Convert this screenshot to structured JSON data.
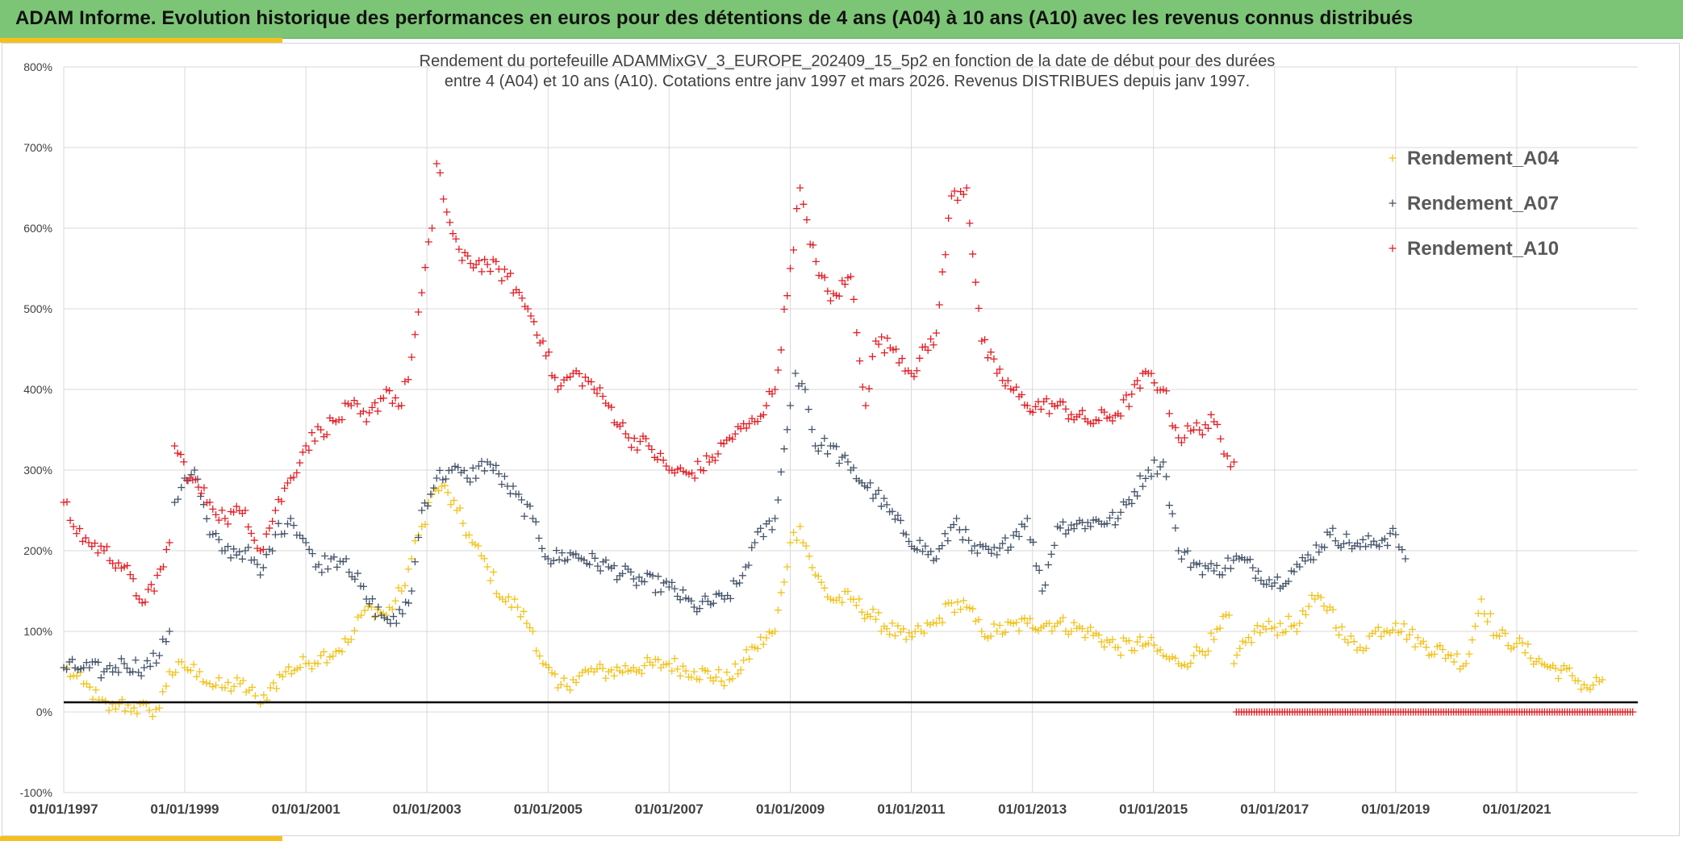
{
  "header": {
    "title": "ADAM Informe. Evolution historique des performances en euros pour des détentions de 4 ans (A04) à 10 ans (A10) avec les revenus connus distribués"
  },
  "colors": {
    "header_bg": "#7cc576",
    "accent": "#f4c01e",
    "A04": "#f2c21b",
    "A07": "#44546a",
    "A10": "#e31e24",
    "reference_line": "#000000",
    "grid": "#d9d9d9"
  },
  "chart_data": {
    "type": "scatter",
    "marker": "plus",
    "title_lines": [
      "Rendement du portefeuille ADAMMixGV_3_EUROPE_202409_15_5p2  en fonction de la date de début pour des durées",
      "entre 4 (A04) et 10 ans (A10). Cotations entre janv 1997 et mars 2026. Revenus DISTRIBUES depuis janv 1997."
    ],
    "legend_position": "top-right",
    "grid": true,
    "ylim": [
      -100,
      800
    ],
    "y_ticks": [
      -100,
      0,
      100,
      200,
      300,
      400,
      500,
      600,
      700,
      800
    ],
    "y_tick_labels": [
      "-100%",
      "0%",
      "100%",
      "200%",
      "300%",
      "400%",
      "500%",
      "600%",
      "700%",
      "800%"
    ],
    "xlim": [
      "1997-01-01",
      "2023-01-01"
    ],
    "x_ticks": [
      "1997-01-01",
      "1999-01-01",
      "2001-01-01",
      "2003-01-01",
      "2005-01-01",
      "2007-01-01",
      "2009-01-01",
      "2011-01-01",
      "2013-01-01",
      "2015-01-01",
      "2017-01-01",
      "2019-01-01",
      "2021-01-01"
    ],
    "x_tick_labels": [
      "01/01/1997",
      "01/01/1999",
      "01/01/2001",
      "01/01/2003",
      "01/01/2005",
      "01/01/2007",
      "01/01/2009",
      "01/01/2011",
      "01/01/2013",
      "01/01/2015",
      "01/01/2017",
      "01/01/2019",
      "01/01/2021"
    ],
    "reference_line_y": 12,
    "series": [
      {
        "name": "Rendement_A04",
        "color": "#f2c21b",
        "points": [
          [
            "1997-01-01",
            55
          ],
          [
            "1997-03-01",
            45
          ],
          [
            "1997-05-01",
            35
          ],
          [
            "1997-08-01",
            15
          ],
          [
            "1997-10-01",
            2
          ],
          [
            "1997-12-01",
            10
          ],
          [
            "1998-03-01",
            5
          ],
          [
            "1998-06-01",
            2
          ],
          [
            "1998-08-01",
            5
          ],
          [
            "1998-10-01",
            50
          ],
          [
            "1999-01-01",
            55
          ],
          [
            "1999-04-01",
            50
          ],
          [
            "1999-06-01",
            35
          ],
          [
            "1999-09-01",
            30
          ],
          [
            "1999-12-01",
            35
          ],
          [
            "2000-03-01",
            20
          ],
          [
            "2000-04-01",
            10
          ],
          [
            "2000-06-01",
            30
          ],
          [
            "2000-09-01",
            50
          ],
          [
            "2001-01-01",
            60
          ],
          [
            "2001-04-01",
            70
          ],
          [
            "2001-07-01",
            75
          ],
          [
            "2001-10-01",
            90
          ],
          [
            "2001-12-01",
            120
          ],
          [
            "2002-02-01",
            130
          ],
          [
            "2002-05-01",
            120
          ],
          [
            "2002-08-01",
            150
          ],
          [
            "2002-10-01",
            190
          ],
          [
            "2002-12-01",
            230
          ],
          [
            "2003-02-01",
            270
          ],
          [
            "2003-04-01",
            280
          ],
          [
            "2003-07-01",
            250
          ],
          [
            "2003-10-01",
            210
          ],
          [
            "2004-01-01",
            180
          ],
          [
            "2004-04-01",
            140
          ],
          [
            "2004-07-01",
            130
          ],
          [
            "2004-10-01",
            100
          ],
          [
            "2004-12-01",
            60
          ],
          [
            "2005-03-01",
            30
          ],
          [
            "2005-06-01",
            40
          ],
          [
            "2005-09-01",
            50
          ],
          [
            "2006-01-01",
            50
          ],
          [
            "2006-06-01",
            55
          ],
          [
            "2007-01-01",
            60
          ],
          [
            "2007-06-01",
            50
          ],
          [
            "2008-01-01",
            40
          ],
          [
            "2008-06-01",
            80
          ],
          [
            "2008-10-01",
            100
          ],
          [
            "2009-01-01",
            210
          ],
          [
            "2009-03-01",
            230
          ],
          [
            "2009-06-01",
            170
          ],
          [
            "2009-09-01",
            140
          ],
          [
            "2010-01-01",
            140
          ],
          [
            "2010-06-01",
            115
          ],
          [
            "2010-12-01",
            90
          ],
          [
            "2011-03-01",
            100
          ],
          [
            "2011-06-01",
            110
          ],
          [
            "2011-09-01",
            135
          ],
          [
            "2011-12-01",
            130
          ],
          [
            "2012-03-01",
            100
          ],
          [
            "2012-06-01",
            100
          ],
          [
            "2012-12-01",
            110
          ],
          [
            "2013-06-01",
            110
          ],
          [
            "2013-12-01",
            100
          ],
          [
            "2014-06-01",
            80
          ],
          [
            "2014-12-01",
            85
          ],
          [
            "2015-03-01",
            70
          ],
          [
            "2015-06-01",
            60
          ],
          [
            "2015-09-01",
            70
          ],
          [
            "2016-01-01",
            90
          ],
          [
            "2016-04-01",
            120
          ],
          [
            "2016-05-01",
            60
          ],
          [
            "2016-09-01",
            100
          ],
          [
            "2017-01-01",
            105
          ],
          [
            "2017-06-01",
            110
          ],
          [
            "2017-09-01",
            140
          ],
          [
            "2017-12-01",
            130
          ],
          [
            "2018-03-01",
            90
          ],
          [
            "2018-06-01",
            80
          ],
          [
            "2018-09-01",
            100
          ],
          [
            "2019-01-01",
            110
          ],
          [
            "2019-06-01",
            85
          ],
          [
            "2019-12-01",
            70
          ],
          [
            "2020-03-01",
            60
          ],
          [
            "2020-06-01",
            140
          ],
          [
            "2020-09-01",
            95
          ],
          [
            "2021-01-01",
            85
          ],
          [
            "2021-06-01",
            60
          ],
          [
            "2021-12-01",
            45
          ],
          [
            "2022-03-01",
            30
          ],
          [
            "2022-06-01",
            40
          ]
        ]
      },
      {
        "name": "Rendement_A07",
        "color": "#44546a",
        "points": [
          [
            "1997-01-01",
            55
          ],
          [
            "1997-05-01",
            55
          ],
          [
            "1997-09-01",
            50
          ],
          [
            "1998-01-01",
            60
          ],
          [
            "1998-05-01",
            55
          ],
          [
            "1998-08-01",
            70
          ],
          [
            "1998-10-01",
            100
          ],
          [
            "1998-11-01",
            260
          ],
          [
            "1999-01-01",
            290
          ],
          [
            "1999-03-01",
            300
          ],
          [
            "1999-06-01",
            220
          ],
          [
            "1999-09-01",
            200
          ],
          [
            "2000-01-01",
            200
          ],
          [
            "2000-04-01",
            170
          ],
          [
            "2000-07-01",
            220
          ],
          [
            "2000-10-01",
            240
          ],
          [
            "2001-01-01",
            210
          ],
          [
            "2001-03-01",
            180
          ],
          [
            "2001-06-01",
            190
          ],
          [
            "2001-09-01",
            190
          ],
          [
            "2002-01-01",
            140
          ],
          [
            "2002-04-01",
            120
          ],
          [
            "2002-07-01",
            110
          ],
          [
            "2002-10-01",
            150
          ],
          [
            "2002-12-01",
            250
          ],
          [
            "2003-03-01",
            290
          ],
          [
            "2003-06-01",
            300
          ],
          [
            "2003-09-01",
            290
          ],
          [
            "2004-01-01",
            310
          ],
          [
            "2004-05-01",
            280
          ],
          [
            "2004-10-01",
            240
          ],
          [
            "2005-01-01",
            190
          ],
          [
            "2005-06-01",
            195
          ],
          [
            "2006-01-01",
            180
          ],
          [
            "2006-06-01",
            165
          ],
          [
            "2007-01-01",
            155
          ],
          [
            "2007-06-01",
            130
          ],
          [
            "2007-12-01",
            140
          ],
          [
            "2008-03-01",
            160
          ],
          [
            "2008-06-01",
            210
          ],
          [
            "2008-10-01",
            240
          ],
          [
            "2009-01-01",
            380
          ],
          [
            "2009-02-01",
            420
          ],
          [
            "2009-04-01",
            400
          ],
          [
            "2009-06-01",
            330
          ],
          [
            "2009-09-01",
            330
          ],
          [
            "2010-01-01",
            300
          ],
          [
            "2010-06-01",
            270
          ],
          [
            "2010-12-01",
            220
          ],
          [
            "2011-06-01",
            190
          ],
          [
            "2011-10-01",
            240
          ],
          [
            "2012-01-01",
            200
          ],
          [
            "2012-06-01",
            195
          ],
          [
            "2012-12-01",
            240
          ],
          [
            "2013-03-01",
            150
          ],
          [
            "2013-06-01",
            230
          ],
          [
            "2013-12-01",
            235
          ],
          [
            "2014-06-01",
            240
          ],
          [
            "2014-12-01",
            300
          ],
          [
            "2015-03-01",
            310
          ],
          [
            "2015-06-01",
            200
          ],
          [
            "2015-09-01",
            185
          ],
          [
            "2016-01-01",
            175
          ],
          [
            "2016-06-01",
            190
          ],
          [
            "2017-01-01",
            160
          ],
          [
            "2017-06-01",
            180
          ],
          [
            "2017-12-01",
            220
          ],
          [
            "2018-06-01",
            205
          ],
          [
            "2019-01-01",
            220
          ],
          [
            "2019-03-01",
            190
          ]
        ]
      },
      {
        "name": "Rendement_A10",
        "color": "#e31e24",
        "points": [
          [
            "1997-01-01",
            260
          ],
          [
            "1997-03-01",
            230
          ],
          [
            "1997-06-01",
            210
          ],
          [
            "1997-09-01",
            200
          ],
          [
            "1998-01-01",
            180
          ],
          [
            "1998-04-01",
            140
          ],
          [
            "1998-07-01",
            150
          ],
          [
            "1998-10-01",
            210
          ],
          [
            "1998-11-01",
            330
          ],
          [
            "1999-02-01",
            290
          ],
          [
            "1999-06-01",
            260
          ],
          [
            "1999-09-01",
            240
          ],
          [
            "2000-01-01",
            250
          ],
          [
            "2000-04-01",
            200
          ],
          [
            "2000-07-01",
            250
          ],
          [
            "2000-10-01",
            290
          ],
          [
            "2001-01-01",
            330
          ],
          [
            "2001-04-01",
            350
          ],
          [
            "2001-07-01",
            360
          ],
          [
            "2001-10-01",
            380
          ],
          [
            "2002-01-01",
            360
          ],
          [
            "2002-05-01",
            400
          ],
          [
            "2002-08-01",
            380
          ],
          [
            "2002-10-01",
            440
          ],
          [
            "2002-12-01",
            520
          ],
          [
            "2003-02-01",
            600
          ],
          [
            "2003-03-01",
            680
          ],
          [
            "2003-05-01",
            620
          ],
          [
            "2003-08-01",
            560
          ],
          [
            "2004-01-01",
            555
          ],
          [
            "2004-05-01",
            540
          ],
          [
            "2004-09-01",
            500
          ],
          [
            "2004-12-01",
            460
          ],
          [
            "2005-03-01",
            400
          ],
          [
            "2005-06-01",
            420
          ],
          [
            "2005-09-01",
            410
          ],
          [
            "2006-01-01",
            380
          ],
          [
            "2006-05-01",
            340
          ],
          [
            "2006-09-01",
            330
          ],
          [
            "2007-01-01",
            300
          ],
          [
            "2007-05-01",
            295
          ],
          [
            "2007-09-01",
            310
          ],
          [
            "2008-01-01",
            340
          ],
          [
            "2008-06-01",
            360
          ],
          [
            "2008-10-01",
            400
          ],
          [
            "2009-01-01",
            550
          ],
          [
            "2009-03-01",
            650
          ],
          [
            "2009-05-01",
            580
          ],
          [
            "2009-09-01",
            510
          ],
          [
            "2010-01-01",
            540
          ],
          [
            "2010-04-01",
            380
          ],
          [
            "2010-06-01",
            460
          ],
          [
            "2010-10-01",
            450
          ],
          [
            "2011-01-01",
            420
          ],
          [
            "2011-06-01",
            470
          ],
          [
            "2011-09-01",
            640
          ],
          [
            "2011-12-01",
            650
          ],
          [
            "2012-03-01",
            460
          ],
          [
            "2012-06-01",
            420
          ],
          [
            "2012-12-01",
            380
          ],
          [
            "2013-06-01",
            380
          ],
          [
            "2013-12-01",
            360
          ],
          [
            "2014-06-01",
            370
          ],
          [
            "2014-12-01",
            420
          ],
          [
            "2015-03-01",
            400
          ],
          [
            "2015-06-01",
            340
          ],
          [
            "2015-09-01",
            350
          ],
          [
            "2016-01-01",
            360
          ],
          [
            "2016-03-01",
            320
          ],
          [
            "2016-05-01",
            310
          ],
          [
            "2016-05-15",
            0
          ],
          [
            "2017-01-01",
            0
          ],
          [
            "2018-01-01",
            0
          ],
          [
            "2019-01-01",
            0
          ],
          [
            "2020-01-01",
            0
          ],
          [
            "2021-01-01",
            0
          ],
          [
            "2022-01-01",
            0
          ],
          [
            "2022-12-01",
            0
          ]
        ]
      }
    ]
  }
}
